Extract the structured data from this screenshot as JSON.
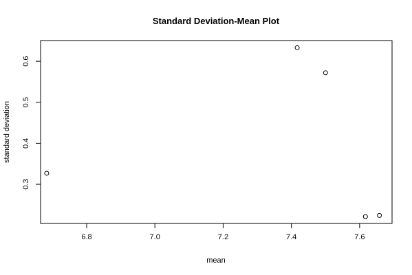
{
  "chart_data": {
    "type": "scatter",
    "title": "Standard Deviation-Mean Plot",
    "xlabel": "mean",
    "ylabel": "standard deviation",
    "xlim": [
      6.665,
      7.695
    ],
    "ylim": [
      0.2045,
      0.6505
    ],
    "x_ticks": [
      6.8,
      7.0,
      7.2,
      7.4,
      7.6
    ],
    "x_tick_labels": [
      "6.8",
      "7.0",
      "7.2",
      "7.4",
      "7.6"
    ],
    "y_ticks": [
      0.3,
      0.4,
      0.5,
      0.6
    ],
    "y_tick_labels": [
      "0.3",
      "0.4",
      "0.5",
      "0.6"
    ],
    "grid": false,
    "points": [
      {
        "x": 6.683,
        "y": 0.327
      },
      {
        "x": 7.417,
        "y": 0.633
      },
      {
        "x": 7.5,
        "y": 0.572
      },
      {
        "x": 7.617,
        "y": 0.221
      },
      {
        "x": 7.658,
        "y": 0.224
      }
    ]
  }
}
